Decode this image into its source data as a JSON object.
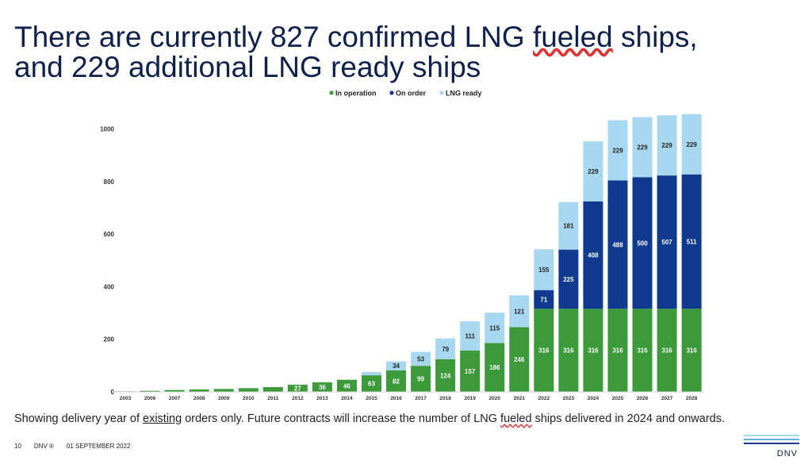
{
  "slide": {
    "title_line1_a": "There are currently 827 confirmed LNG ",
    "title_line1_b": "fueled",
    "title_line1_c": " ships,",
    "title_line2": "and 229 additional LNG ready ships",
    "footnote_a": "Showing delivery year of ",
    "footnote_b": "existing",
    "footnote_c": " orders only. Future contracts will increase the number of LNG ",
    "footnote_d": "fueled",
    "footnote_e": " ships delivered in 2024 and onwards.",
    "page_number": "10",
    "brand_mark": "DNV ®",
    "date": "01 SEPTEMBER 2022",
    "logo_text": "DNV"
  },
  "colors": {
    "in_operation": "#3c9a3a",
    "on_order": "#0f3a8f",
    "lng_ready": "#a8d8ef",
    "title": "#0f204b"
  },
  "chart_data": {
    "type": "bar",
    "stacked": true,
    "categories": [
      "2003",
      "2006",
      "2007",
      "2008",
      "2009",
      "2010",
      "2011",
      "2012",
      "2013",
      "2014",
      "2015",
      "2016",
      "2017",
      "2018",
      "2019",
      "2020",
      "2021",
      "2022",
      "2023",
      "2024",
      "2025",
      "2026",
      "2027",
      "2028"
    ],
    "series": [
      {
        "name": "In operation",
        "color": "#3c9a3a",
        "values": [
          2,
          4,
          7,
          9,
          11,
          14,
          18,
          27,
          36,
          46,
          63,
          82,
          99,
          124,
          157,
          186,
          246,
          316,
          316,
          316,
          316,
          316,
          316,
          316
        ],
        "labels": [
          "",
          "",
          "",
          "",
          "",
          "",
          "",
          "27",
          "36",
          "46",
          "63",
          "82",
          "99",
          "124",
          "157",
          "186",
          "246",
          "316",
          "316",
          "316",
          "316",
          "316",
          "316",
          "316"
        ]
      },
      {
        "name": "On order",
        "color": "#0f3a8f",
        "values": [
          0,
          0,
          0,
          0,
          0,
          0,
          0,
          0,
          0,
          0,
          0,
          0,
          0,
          0,
          0,
          0,
          0,
          71,
          225,
          408,
          488,
          500,
          507,
          511
        ],
        "labels": [
          "",
          "",
          "",
          "",
          "",
          "",
          "",
          "",
          "",
          "",
          "",
          "",
          "",
          "",
          "",
          "",
          "",
          "71",
          "225",
          "408",
          "488",
          "500",
          "507",
          "511"
        ]
      },
      {
        "name": "LNG ready",
        "color": "#a8d8ef",
        "values": [
          0,
          0,
          0,
          0,
          0,
          0,
          0,
          0,
          0,
          0,
          12,
          34,
          53,
          79,
          111,
          115,
          121,
          155,
          181,
          229,
          229,
          229,
          229,
          229
        ],
        "labels": [
          "",
          "",
          "",
          "",
          "",
          "",
          "",
          "",
          "",
          "",
          "",
          "34",
          "53",
          "79",
          "111",
          "115",
          "121",
          "155",
          "181",
          "229",
          "229",
          "229",
          "229",
          "229"
        ]
      }
    ],
    "yticks": [
      "0",
      "200",
      "400",
      "600",
      "800",
      "1000"
    ],
    "ylim": [
      0,
      1080
    ],
    "legend_position": "top-center",
    "grid": false
  }
}
